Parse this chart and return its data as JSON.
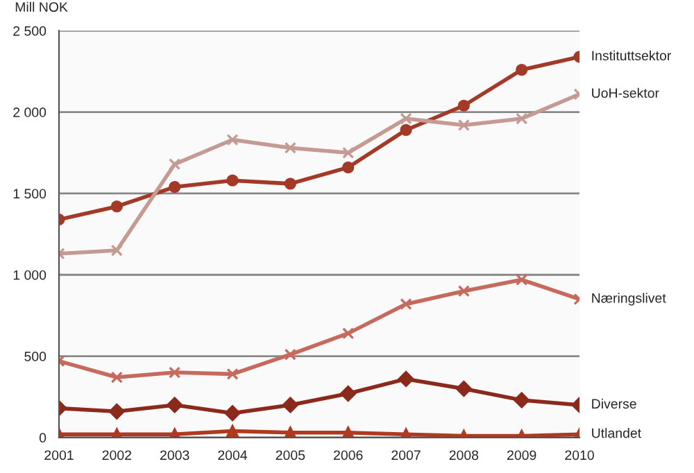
{
  "chart_data": {
    "type": "line",
    "ylabel": "Mill NOK",
    "x": [
      2001,
      2002,
      2003,
      2004,
      2005,
      2006,
      2007,
      2008,
      2009,
      2010
    ],
    "xlim": [
      2001,
      2010
    ],
    "xticks": [
      2001,
      2002,
      2003,
      2004,
      2005,
      2006,
      2007,
      2008,
      2009,
      2010
    ],
    "ylim": [
      0,
      2500
    ],
    "yticks": [
      0,
      500,
      {
        "value": 1000,
        "label": "1 000"
      },
      {
        "value": 1500,
        "label": "1 500"
      },
      {
        "value": 2000,
        "label": "2 000"
      },
      {
        "value": 2500,
        "label": "2 500"
      }
    ],
    "grid": "y",
    "legend": false,
    "line_style": "solid",
    "series": [
      {
        "name": "Instituttsektor",
        "color": "#a33a27",
        "marker": "circle",
        "values": [
          1340,
          1420,
          1540,
          1580,
          1560,
          1660,
          1890,
          2040,
          2260,
          2340
        ]
      },
      {
        "name": "UoH-sektor",
        "color": "#c49a93",
        "marker": "cross",
        "values": [
          1130,
          1150,
          1680,
          1830,
          1780,
          1750,
          1960,
          1920,
          1960,
          2110
        ]
      },
      {
        "name": "Næringslivet",
        "color": "#c76a5e",
        "marker": "cross",
        "values": [
          470,
          370,
          400,
          390,
          510,
          640,
          820,
          900,
          970,
          850
        ]
      },
      {
        "name": "Diverse",
        "color": "#8b2a1c",
        "marker": "diamond",
        "values": [
          180,
          160,
          200,
          150,
          200,
          270,
          360,
          300,
          230,
          200
        ]
      },
      {
        "name": "Utlandet",
        "color": "#b03a20",
        "marker": "triangle",
        "values": [
          20,
          20,
          20,
          40,
          30,
          30,
          20,
          10,
          10,
          20
        ]
      }
    ]
  }
}
